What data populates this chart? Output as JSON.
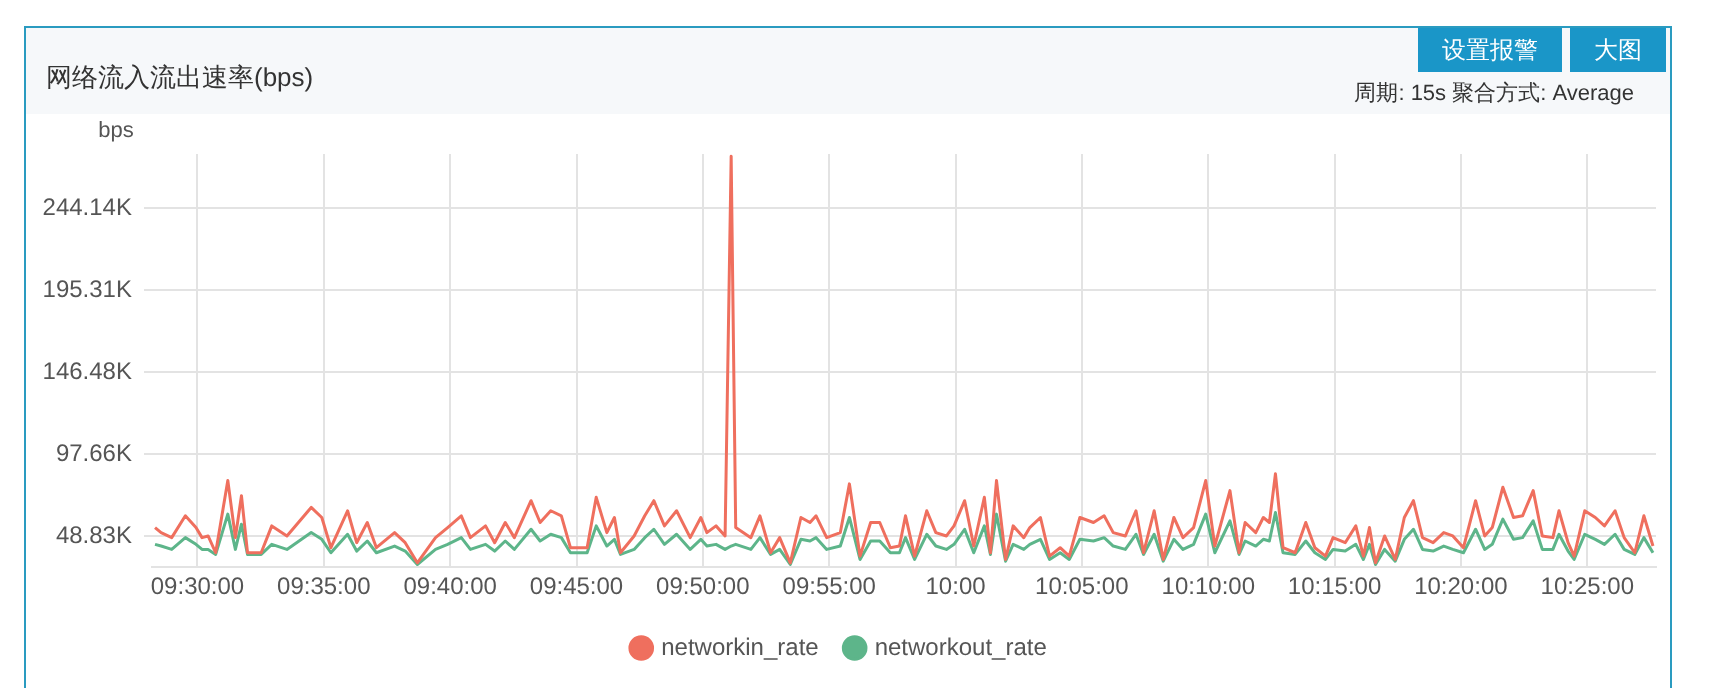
{
  "chart_data": {
    "type": "line",
    "title": "网络流入流出速率(bps)",
    "ylabel": "bps",
    "annotations": [
      "周期: 15s  聚合方式: Average",
      "设置报警",
      "大图"
    ],
    "x": [
      9.472,
      9.476,
      9.483,
      9.492,
      9.499,
      9.503,
      9.507,
      9.512,
      9.52,
      9.525,
      9.529,
      9.533,
      9.542,
      9.549,
      9.559,
      9.575,
      9.582,
      9.588,
      9.599,
      9.605,
      9.612,
      9.618,
      9.63,
      9.637,
      9.645,
      9.657,
      9.665,
      9.674,
      9.68,
      9.69,
      9.696,
      9.703,
      9.709,
      9.72,
      9.726,
      9.733,
      9.74,
      9.746,
      9.757,
      9.763,
      9.77,
      9.775,
      9.779,
      9.788,
      9.795,
      9.801,
      9.808,
      9.816,
      9.825,
      9.832,
      9.836,
      9.842,
      9.848,
      9.852,
      9.855,
      9.865,
      9.871,
      9.878,
      9.884,
      9.891,
      9.898,
      9.904,
      9.908,
      9.915,
      9.924,
      9.93,
      9.937,
      9.944,
      9.95,
      9.957,
      9.963,
      9.967,
      9.973,
      9.981,
      9.987,
      9.994,
      9.999,
      10.006,
      10.012,
      10.019,
      10.023,
      10.027,
      10.033,
      10.038,
      10.045,
      10.049,
      10.056,
      10.062,
      10.069,
      10.075,
      10.082,
      10.091,
      10.098,
      10.104,
      10.112,
      10.119,
      10.124,
      10.131,
      10.137,
      10.144,
      10.15,
      10.157,
      10.165,
      10.171,
      10.181,
      10.187,
      10.191,
      10.198,
      10.203,
      10.207,
      10.211,
      10.216,
      10.224,
      10.231,
      10.237,
      10.244,
      10.249,
      10.257,
      10.264,
      10.269,
      10.273,
      10.277,
      10.283,
      10.29,
      10.296,
      10.302,
      10.308,
      10.315,
      10.322,
      10.328,
      10.335,
      10.343,
      10.349,
      10.354,
      10.361,
      10.368,
      10.374,
      10.381,
      10.387,
      10.394,
      10.398,
      10.404,
      10.408,
      10.415,
      10.422,
      10.428,
      10.435,
      10.441,
      10.448,
      10.454,
      10.46
    ],
    "series": [
      {
        "name": "networkin_rate",
        "color": "#ef6f5e",
        "values": [
          54,
          51,
          48,
          61,
          54,
          48,
          49,
          39,
          82,
          48,
          73,
          39,
          39,
          55,
          49,
          66,
          60,
          42,
          64,
          45,
          57,
          42,
          51,
          45,
          33,
          48,
          54,
          61,
          48,
          55,
          45,
          57,
          48,
          70,
          57,
          64,
          61,
          42,
          42,
          72,
          51,
          60,
          39,
          49,
          61,
          70,
          55,
          64,
          48,
          60,
          51,
          55,
          49,
          275,
          54,
          48,
          61,
          39,
          48,
          33,
          60,
          57,
          61,
          48,
          51,
          80,
          37,
          57,
          57,
          42,
          43,
          61,
          37,
          64,
          51,
          49,
          55,
          70,
          43,
          72,
          39,
          82,
          35,
          55,
          48,
          54,
          60,
          37,
          42,
          37,
          60,
          57,
          61,
          51,
          49,
          64,
          39,
          64,
          35,
          60,
          48,
          54,
          82,
          43,
          76,
          39,
          57,
          51,
          60,
          57,
          86,
          42,
          39,
          57,
          42,
          37,
          48,
          45,
          55,
          37,
          54,
          33,
          49,
          35,
          60,
          70,
          48,
          45,
          51,
          49,
          42,
          70,
          49,
          54,
          78,
          60,
          61,
          76,
          49,
          48,
          64,
          45,
          37,
          64,
          60,
          55,
          64,
          48,
          39,
          61,
          43
        ]
      },
      {
        "name": "networkout_rate",
        "color": "#5db58a",
        "values": [
          44,
          43,
          41,
          48,
          44,
          41,
          41,
          38,
          62,
          41,
          56,
          38,
          38,
          44,
          41,
          51,
          47,
          39,
          50,
          40,
          46,
          39,
          43,
          40,
          32,
          41,
          44,
          48,
          41,
          44,
          40,
          46,
          41,
          53,
          46,
          50,
          48,
          39,
          39,
          55,
          43,
          47,
          38,
          41,
          48,
          53,
          44,
          50,
          41,
          47,
          43,
          44,
          41,
          43,
          44,
          41,
          48,
          38,
          41,
          32,
          47,
          46,
          48,
          41,
          43,
          60,
          35,
          46,
          46,
          39,
          39,
          48,
          35,
          50,
          43,
          41,
          44,
          53,
          39,
          55,
          38,
          62,
          34,
          44,
          41,
          44,
          47,
          35,
          39,
          35,
          47,
          46,
          48,
          43,
          41,
          50,
          38,
          50,
          34,
          47,
          41,
          44,
          62,
          39,
          58,
          38,
          46,
          43,
          47,
          46,
          63,
          39,
          38,
          46,
          39,
          35,
          41,
          40,
          44,
          35,
          44,
          32,
          41,
          34,
          47,
          53,
          41,
          40,
          43,
          41,
          39,
          53,
          41,
          44,
          59,
          47,
          48,
          58,
          41,
          41,
          50,
          40,
          35,
          50,
          47,
          44,
          50,
          41,
          38,
          48,
          39
        ]
      }
    ],
    "xlim": [
      9.47,
      10.462
    ],
    "xticks": [
      {
        "value": 9.5,
        "label": "09:30:00"
      },
      {
        "value": 9.5833,
        "label": "09:35:00"
      },
      {
        "value": 9.6667,
        "label": "09:40:00"
      },
      {
        "value": 9.75,
        "label": "09:45:00"
      },
      {
        "value": 9.8333,
        "label": "09:50:00"
      },
      {
        "value": 9.9167,
        "label": "09:55:00"
      },
      {
        "value": 10,
        "label": "10:00"
      },
      {
        "value": 10.0833,
        "label": "10:05:00"
      },
      {
        "value": 10.1667,
        "label": "10:10:00"
      },
      {
        "value": 10.25,
        "label": "10:15:00"
      },
      {
        "value": 10.3333,
        "label": "10:20:00"
      },
      {
        "value": 10.4167,
        "label": "10:25:00"
      }
    ],
    "ylim": [
      30.4,
      276.4
    ],
    "yticks": [
      {
        "value": 48.83,
        "label": "48.83K"
      },
      {
        "value": 97.66,
        "label": "97.66K"
      },
      {
        "value": 146.48,
        "label": "146.48K"
      },
      {
        "value": 195.31,
        "label": "195.31K"
      },
      {
        "value": 244.14,
        "label": "244.14K"
      }
    ],
    "grid": true,
    "legend": "bottom",
    "marker": "none",
    "line_style": "solid"
  }
}
